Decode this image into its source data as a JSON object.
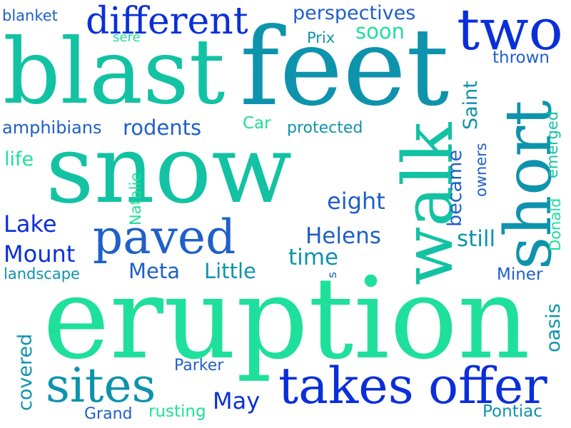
{
  "colors": {
    "background": "#ffffff",
    "royal_blue": "#0a2fd9",
    "blue": "#1f5fc9",
    "teal": "#0e93ad",
    "sea_green": "#12c2a3",
    "spring_green": "#1ee09a"
  },
  "words": {
    "blast": "blast",
    "feet": "feet",
    "snow": "snow",
    "eruption": "eruption",
    "walk": "walk",
    "short": "short",
    "two": "two",
    "different": "different",
    "perspectives": "perspectives",
    "takes": "takes",
    "offer": "offer",
    "sites": "sites",
    "paved": "paved",
    "blanket": "blanket",
    "sere": "sere",
    "soon": "soon",
    "prix": "Prix",
    "thrown": "thrown",
    "saint": "Saint",
    "amphibians": "amphibians",
    "rodents": "rodents",
    "car": "Car",
    "protected": "protected",
    "emerged": "emerged",
    "owners": "owners",
    "became": "became",
    "life": "life",
    "natalie": "Natalie",
    "eight": "eight",
    "lake": "Lake",
    "mount": "Mount",
    "landscape": "landscape",
    "helens": "Helens",
    "time": "time",
    "still": "still",
    "donald": "Donald",
    "meta": "Meta",
    "little": "Little",
    "s": "s",
    "miner": "Miner",
    "covered": "covered",
    "oasis": "oasis",
    "parker": "Parker",
    "may": "May",
    "grand": "Grand",
    "rusting": "rusting",
    "pontiac": "Pontiac"
  }
}
